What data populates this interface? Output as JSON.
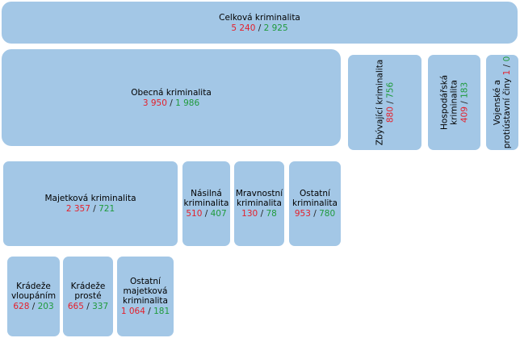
{
  "nodes": {
    "celkova": {
      "label": "Celková kriminalita",
      "v1": "5 240",
      "v2": "2 925"
    },
    "obecna": {
      "label": "Obecná kriminalita",
      "v1": "3 950",
      "v2": "1 986"
    },
    "zbyvajici": {
      "label": "Zbývající kriminalita",
      "v1": "880",
      "v2": "756"
    },
    "hospodarska": {
      "label1": "Hospodářská",
      "label2": "kriminalita",
      "v1": "409",
      "v2": "183"
    },
    "vojenske": {
      "label1": "Vojenské a",
      "label2": "protiústavní činy",
      "v1": "1",
      "v2": "0"
    },
    "majetkova": {
      "label": "Majetková kriminalita",
      "v1": "2 357",
      "v2": "721"
    },
    "nasilna": {
      "label1": "Násilná",
      "label2": "kriminalita",
      "v1": "510",
      "v2": "407"
    },
    "mravnostni": {
      "label1": "Mravnostní",
      "label2": "kriminalita",
      "v1": "130",
      "v2": "78"
    },
    "ostatni": {
      "label1": "Ostatní",
      "label2": "kriminalita",
      "v1": "953",
      "v2": "780"
    },
    "kradeze_vloupanim": {
      "label1": "Krádeže",
      "label2": "vloupáním",
      "v1": "628",
      "v2": "203"
    },
    "kradeze_proste": {
      "label1": "Krádeže",
      "label2": "prosté",
      "v1": "665",
      "v2": "337"
    },
    "ostatni_majetkova": {
      "label1": "Ostatní",
      "label2": "majetková",
      "label3": "kriminalita",
      "v1": "1 064",
      "v2": "181"
    }
  },
  "separator": "/",
  "colors": {
    "box_fill": "#a3c7e6",
    "value_primary": "#e4202c",
    "value_secondary": "#1f9a3c"
  }
}
